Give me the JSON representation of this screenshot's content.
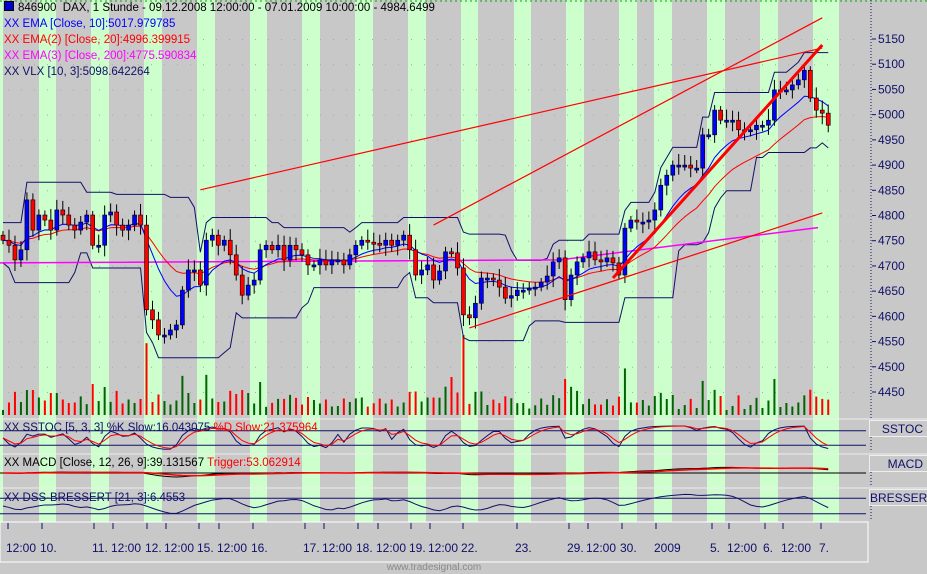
{
  "header": {
    "symbol": "846900",
    "title": "DAX, 1 Stunde - 09.12.2008 12:00:00 - 07.01.2009 10:00:00 - 4984.6499"
  },
  "legend": [
    {
      "text": "XX EMA [Close, 10]:5017.979785",
      "color": "#0000ff"
    },
    {
      "text": "XX EMA(2) [Close, 20]:4996.399915",
      "color": "#ff0000"
    },
    {
      "text": "XX EMA(3) [Close, 200]:4775.590834",
      "color": "#ff00ff"
    },
    {
      "text": "XX VLX [10, 3]:5098.642264",
      "color": "#10106a"
    }
  ],
  "panels": {
    "sstoc": {
      "label": "SSTOC",
      "title": "XX SSTOC [5, 3, 3] %K Slow:16.043075",
      "title2": "%D Slow:21.375964"
    },
    "macd": {
      "label": "MACD",
      "title": "XX MACD [Close, 12, 26, 9]:39.131567",
      "title2": "Trigger:53.062914"
    },
    "dss": {
      "label": "BRESSERT",
      "title": "XX DSS-BRESSERT [21, 3]:6.4553"
    }
  },
  "footer": "www.tradesignal.com",
  "colors": {
    "up": "#0000ff",
    "down": "#ff0000",
    "vol_up": "#006400",
    "vol_down": "#ff0000",
    "session": "#ccffcc",
    "background": "#c8c8c8",
    "axis_text": "#10106a"
  },
  "chart_data": {
    "type": "candlestick",
    "ylim": [
      4420,
      5200
    ],
    "yticks": [
      5150,
      5100,
      5050,
      5000,
      4950,
      4900,
      4850,
      4800,
      4750,
      4700,
      4650,
      4600,
      4550,
      4500,
      4450
    ],
    "xtick_labels": [
      "12:00",
      "10.",
      "11.",
      "12:00",
      "12.",
      "12:00",
      "15.",
      "12:00",
      "16.",
      "17.",
      "12:00",
      "18.",
      "12:00",
      "19.",
      "12:00",
      "22.",
      "23.",
      "29.",
      "12:00",
      "30.",
      "2009",
      "5.",
      "12:00",
      "6.",
      "12:00",
      "7."
    ],
    "close": [
      4751,
      4741,
      4712,
      4732,
      4831,
      4771,
      4801,
      4791,
      4771,
      4811,
      4801,
      4781,
      4771,
      4787,
      4801,
      4741,
      4741,
      4801,
      4807,
      4781,
      4771,
      4781,
      4801,
      4781,
      4613,
      4593,
      4563,
      4563,
      4573,
      4583,
      4652,
      4692,
      4692,
      4662,
      4751,
      4761,
      4741,
      4751,
      4722,
      4682,
      4642,
      4662,
      4672,
      4732,
      4741,
      4732,
      4741,
      4712,
      4741,
      4732,
      4722,
      4702,
      4702,
      4712,
      4702,
      4712,
      4712,
      4702,
      4722,
      4741,
      4751,
      4747,
      4745,
      4741,
      4751,
      4741,
      4751,
      4761,
      4732,
      4682,
      4692,
      4702,
      4672,
      4690,
      4728,
      4726,
      4696,
      4603,
      4597,
      4626,
      4676,
      4676,
      4672,
      4658,
      4636,
      4641,
      4652,
      4652,
      4656,
      4658,
      4668,
      4680,
      4708,
      4716,
      4633,
      4682,
      4708,
      4716,
      4728,
      4712,
      4708,
      4716,
      4706,
      4682,
      4775,
      4791,
      4787,
      4787,
      4791,
      4811,
      4860,
      4880,
      4900,
      4900,
      4900,
      4894,
      4894,
      4960,
      4960,
      5009,
      4989,
      4989,
      4989,
      4970,
      4970,
      4970,
      4979,
      4979,
      4989,
      5049,
      5049,
      5049,
      5059,
      5069,
      5088,
      5033,
      5009,
      5003,
      4979
    ],
    "ema200": [
      [
        0,
        4706
      ],
      [
        560,
        4712
      ],
      [
        818,
        4776
      ]
    ],
    "trendlines": [
      {
        "from": [
          33,
          4851
        ],
        "to": [
          137,
          5132
        ],
        "color": "#ff0000"
      },
      {
        "from": [
          72,
          4781
        ],
        "to": [
          137,
          5192
        ],
        "color": "#ff0000"
      },
      {
        "from": [
          78,
          4577
        ],
        "to": [
          137,
          4805
        ],
        "color": "#ff0000"
      },
      {
        "from": [
          102,
          4676
        ],
        "to": [
          137,
          5138
        ],
        "color": "#ff0000",
        "bold": true
      }
    ]
  }
}
